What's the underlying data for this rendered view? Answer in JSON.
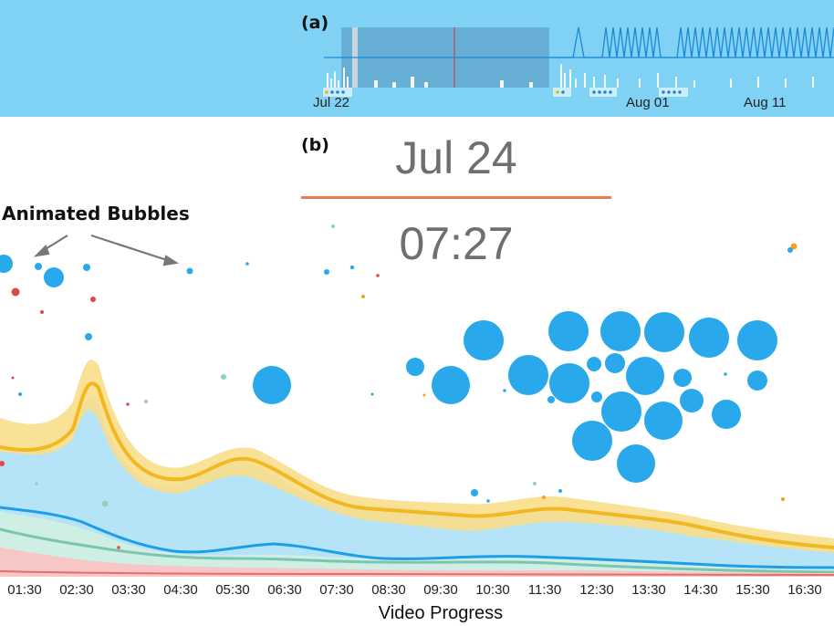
{
  "timeline": {
    "panel_label": "(a)",
    "dates": [
      "Jul 22",
      "Aug 01",
      "Aug 11"
    ]
  },
  "main": {
    "panel_label": "(b)",
    "current_date": "Jul 24",
    "current_time": "07:27",
    "annotation": "Animated Bubbles",
    "x_axis_title": "Video Progress",
    "x_ticks": [
      "01:30",
      "02:30",
      "03:30",
      "04:30",
      "05:30",
      "06:30",
      "07:30",
      "08:30",
      "09:30",
      "10:30",
      "11:30",
      "12:30",
      "13:30",
      "14:30",
      "15:30",
      "16:30"
    ]
  },
  "colors": {
    "timeline_bg": "#80d2f5",
    "stream_blue": "#b5e3f7",
    "stream_yellow": "#f7c83d",
    "stream_teal": "#8fd0bd",
    "stream_red": "#f0a3a3",
    "bubble_blue": "#29a8ec",
    "divider_orange": "#ea7b4d"
  }
}
